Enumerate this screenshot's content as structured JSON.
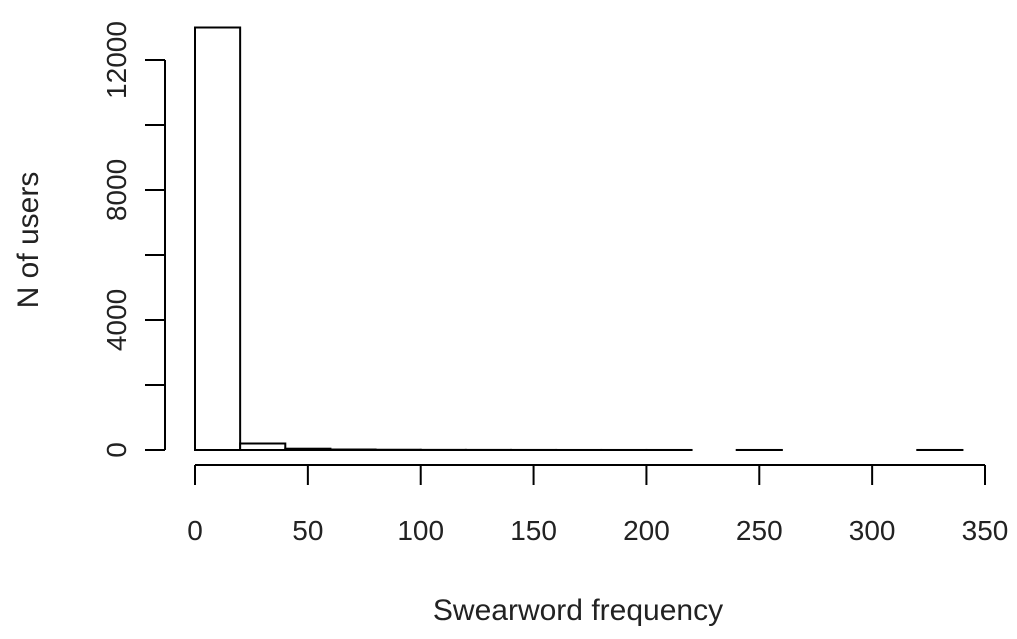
{
  "chart_data": {
    "type": "bar",
    "subtype": "histogram",
    "title": "",
    "xlabel": "Swearword frequency",
    "ylabel": "N of users",
    "xlim": [
      0,
      350
    ],
    "ylim": [
      0,
      13000
    ],
    "x_ticks": [
      0,
      50,
      100,
      150,
      200,
      250,
      300,
      350
    ],
    "y_ticks": [
      0,
      2000,
      4000,
      6000,
      8000,
      10000,
      12000
    ],
    "y_tick_labels": [
      "0",
      "",
      "4000",
      "",
      "8000",
      "",
      "12000"
    ],
    "bin_width": 20,
    "bins": [
      {
        "x0": 0,
        "x1": 20,
        "count": 13000
      },
      {
        "x0": 20,
        "x1": 40,
        "count": 200
      },
      {
        "x0": 40,
        "x1": 60,
        "count": 40
      },
      {
        "x0": 60,
        "x1": 80,
        "count": 15
      },
      {
        "x0": 80,
        "x1": 100,
        "count": 8
      },
      {
        "x0": 100,
        "x1": 120,
        "count": 4
      },
      {
        "x0": 120,
        "x1": 140,
        "count": 3
      },
      {
        "x0": 140,
        "x1": 160,
        "count": 2
      },
      {
        "x0": 160,
        "x1": 180,
        "count": 1
      },
      {
        "x0": 180,
        "x1": 200,
        "count": 1
      },
      {
        "x0": 200,
        "x1": 220,
        "count": 1
      },
      {
        "x0": 220,
        "x1": 240,
        "count": 0
      },
      {
        "x0": 240,
        "x1": 260,
        "count": 1
      },
      {
        "x0": 260,
        "x1": 280,
        "count": 0
      },
      {
        "x0": 280,
        "x1": 300,
        "count": 0
      },
      {
        "x0": 300,
        "x1": 320,
        "count": 0
      },
      {
        "x0": 320,
        "x1": 340,
        "count": 1
      }
    ],
    "grid": false,
    "legend": "none",
    "colors": {
      "bar_fill": "#ffffff",
      "bar_stroke": "#000000",
      "axis": "#000000"
    }
  }
}
